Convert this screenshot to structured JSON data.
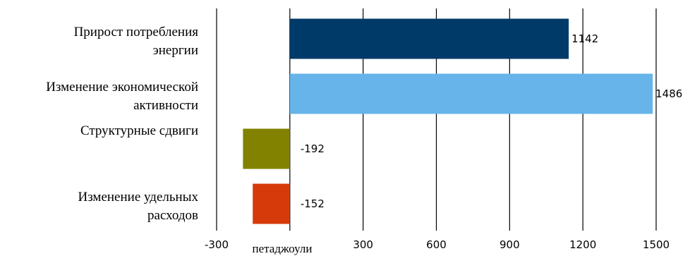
{
  "chart_data": {
    "type": "bar",
    "orientation": "horizontal",
    "categories": [
      [
        "Прирост потребления",
        "энергии"
      ],
      [
        "Изменение экономической",
        "активности"
      ],
      [
        "Структурные сдвиги"
      ],
      [
        "Изменение удельных",
        "расходов"
      ]
    ],
    "values": [
      1142,
      1486,
      -192,
      -152
    ],
    "colors": [
      "#003a68",
      "#66b4ea",
      "#828200",
      "#d63a0a"
    ],
    "xlim": [
      -300,
      1500
    ],
    "xticks": [
      -300,
      0,
      300,
      600,
      900,
      1200,
      1500
    ],
    "xtick_labels": [
      "-300",
      "",
      "300",
      "600",
      "900",
      "1200",
      "1500"
    ],
    "xlabel": "петаджоули",
    "grid": true
  }
}
